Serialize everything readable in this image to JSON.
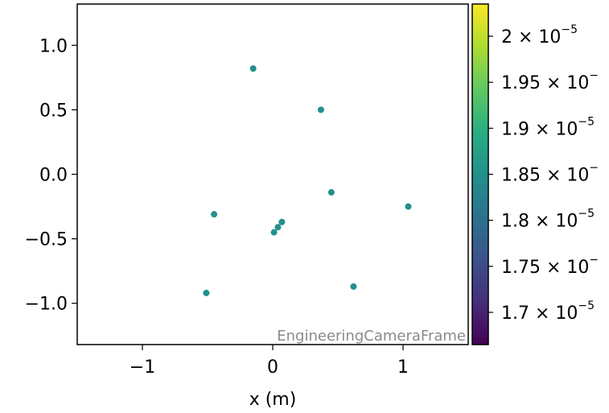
{
  "chart_data": {
    "type": "scatter",
    "xlabel": "x  (m)",
    "ylabel": "",
    "xlim": [
      -1.5,
      1.5
    ],
    "ylim": [
      -1.32,
      1.32
    ],
    "xticks": [
      -1,
      0,
      1
    ],
    "xtick_labels": [
      "−1",
      "0",
      "1"
    ],
    "yticks": [
      1.0,
      0.5,
      0.0,
      -0.5,
      -1.0
    ],
    "ytick_labels": [
      "1.0",
      "0.5",
      "0.0",
      "−0.5",
      "−1.0"
    ],
    "annotation": "EngineeringCameraFrame",
    "point_color": "#21908d",
    "points": [
      {
        "x": -0.15,
        "y": 0.82
      },
      {
        "x": 0.37,
        "y": 0.5
      },
      {
        "x": 0.45,
        "y": -0.14
      },
      {
        "x": 1.04,
        "y": -0.25
      },
      {
        "x": -0.45,
        "y": -0.31
      },
      {
        "x": 0.07,
        "y": -0.37
      },
      {
        "x": 0.04,
        "y": -0.41
      },
      {
        "x": 0.01,
        "y": -0.45
      },
      {
        "x": 0.62,
        "y": -0.87
      },
      {
        "x": -0.51,
        "y": -0.92
      }
    ],
    "colorbar": {
      "colormap": "viridis",
      "range": [
        1.665e-05,
        2.035e-05
      ],
      "ticks": [
        2e-05,
        1.95e-05,
        1.9e-05,
        1.85e-05,
        1.8e-05,
        1.75e-05,
        1.7e-05
      ],
      "tick_labels": [
        {
          "mantissa": "2 × 10",
          "exponent": "−5"
        },
        {
          "mantissa": "1.95 × 10",
          "exponent": "−"
        },
        {
          "mantissa": "1.9 × 10",
          "exponent": "−5"
        },
        {
          "mantissa": "1.85 × 10",
          "exponent": "−"
        },
        {
          "mantissa": "1.8 × 10",
          "exponent": "−5"
        },
        {
          "mantissa": "1.75 × 10",
          "exponent": "−"
        },
        {
          "mantissa": "1.7 × 10",
          "exponent": "−5"
        }
      ]
    }
  }
}
